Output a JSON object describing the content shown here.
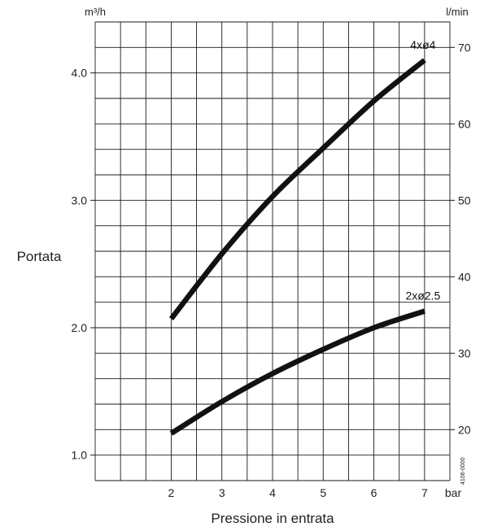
{
  "chart_data": {
    "type": "line",
    "xlabel": "Pressione in entrata",
    "x_unit": "bar",
    "ylabel": "Portata",
    "y_unit_left": "m³/h",
    "y_unit_right": "l/min",
    "x_ticks": [
      "2",
      "3",
      "4",
      "5",
      "6",
      "7"
    ],
    "y_left_ticks": [
      "1.0",
      "2.0",
      "3.0",
      "4.0"
    ],
    "y_right_ticks": [
      "20",
      "30",
      "40",
      "50",
      "60",
      "70"
    ],
    "xlim": [
      0.5,
      7.5
    ],
    "ylim_left": [
      0.8,
      4.4
    ],
    "grid": true,
    "series": [
      {
        "name": "4xø4",
        "x": [
          2,
          3,
          4,
          5,
          6,
          7
        ],
        "y": [
          2.07,
          2.58,
          3.03,
          3.41,
          3.78,
          4.1
        ]
      },
      {
        "name": "2xø2.5",
        "x": [
          2,
          3,
          4,
          5,
          6,
          7
        ],
        "y": [
          1.17,
          1.42,
          1.64,
          1.83,
          2.0,
          2.13
        ]
      }
    ],
    "code": "4106-0000"
  }
}
